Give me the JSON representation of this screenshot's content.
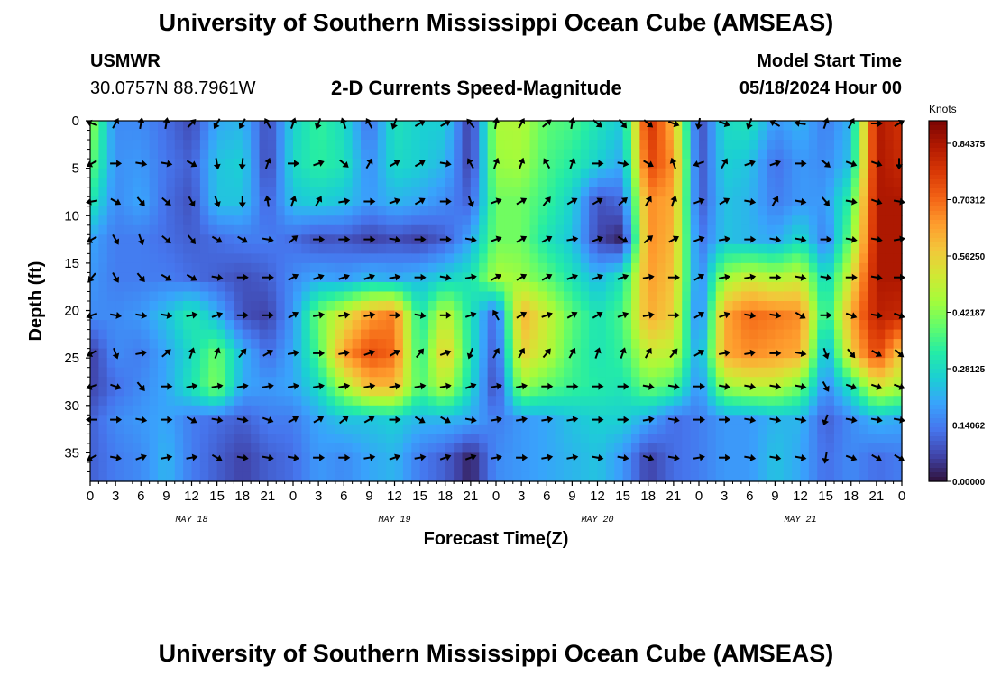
{
  "header": {
    "title": "University of Southern Mississippi Ocean Cube (AMSEAS)",
    "station": "USMWR",
    "coords": "30.0757N  88.7961W",
    "plot_title": "2-D Currents Speed-Magnitude",
    "model_label": "Model Start Time",
    "model_time": "05/18/2024 Hour 00"
  },
  "footer": {
    "title": "University of Southern Mississippi Ocean Cube (AMSEAS)"
  },
  "colors": {
    "scale": [
      "#30123b",
      "#4145ab",
      "#4675ed",
      "#39a2fc",
      "#1bcfd4",
      "#24eca6",
      "#61fc6c",
      "#a4fc3b",
      "#d1e834",
      "#f3c63a",
      "#fe9b2d",
      "#f36315",
      "#d93806",
      "#b11901",
      "#7a0403"
    ]
  },
  "chart_data": {
    "type": "heatmap",
    "title": "2-D Currents Speed-Magnitude",
    "xlabel": "Forecast Time(Z)",
    "ylabel": "Depth (ft)",
    "x_ticks": [
      "0",
      "3",
      "6",
      "9",
      "12",
      "15",
      "18",
      "21",
      "0",
      "3",
      "6",
      "9",
      "12",
      "15",
      "18",
      "21",
      "0",
      "3",
      "6",
      "9",
      "12",
      "15",
      "18",
      "21",
      "0",
      "3",
      "6",
      "9",
      "12",
      "15",
      "18",
      "21",
      "0"
    ],
    "x_hours": [
      0,
      3,
      6,
      9,
      12,
      15,
      18,
      21,
      24,
      27,
      30,
      33,
      36,
      39,
      42,
      45,
      48,
      51,
      54,
      57,
      60,
      63,
      66,
      69,
      72,
      75,
      78,
      81,
      84,
      87,
      90,
      93,
      96
    ],
    "date_labels": [
      {
        "label": "MAY 18",
        "hour": 12
      },
      {
        "label": "MAY 19",
        "hour": 36
      },
      {
        "label": "MAY 20",
        "hour": 60
      },
      {
        "label": "MAY 21",
        "hour": 84
      }
    ],
    "y_ticks": [
      "0",
      "5",
      "10",
      "15",
      "20",
      "25",
      "30",
      "35"
    ],
    "y_values": [
      0,
      5,
      10,
      15,
      20,
      25,
      30,
      35
    ],
    "xlim": [
      0,
      96
    ],
    "ylim": [
      0,
      38
    ],
    "colorbar": {
      "label": "Knots",
      "tick_labels": [
        "0.84375",
        "0.70312",
        "0.56250",
        "0.42187",
        "0.28125",
        "0.14062",
        "0.00000"
      ],
      "tick_values": [
        0.84375,
        0.70312,
        0.5625,
        0.42187,
        0.28125,
        0.14062,
        0.0
      ],
      "range": [
        0,
        0.9
      ]
    },
    "depth_levels": [
      0,
      4.5,
      8.5,
      12.5,
      16.5,
      20.5,
      24.5,
      28,
      31.5,
      35.5
    ],
    "hour_columns": [
      0,
      3,
      6,
      9,
      12,
      15,
      18,
      21,
      24,
      27,
      30,
      33,
      36,
      39,
      42,
      45,
      48,
      51,
      54,
      57,
      60,
      63,
      66,
      69,
      72,
      75,
      78,
      81,
      84,
      87,
      90,
      93,
      96
    ],
    "speed_knots": [
      [
        0.45,
        0.16,
        0.16,
        0.12,
        0.07,
        0.2,
        0.22,
        0.07,
        0.26,
        0.34,
        0.28,
        0.12,
        0.3,
        0.26,
        0.26,
        0.04,
        0.46,
        0.47,
        0.38,
        0.36,
        0.3,
        0.25,
        0.8,
        0.6,
        0.06,
        0.28,
        0.3,
        0.18,
        0.22,
        0.14,
        0.22,
        0.84,
        0.78
      ],
      [
        0.4,
        0.17,
        0.18,
        0.13,
        0.1,
        0.24,
        0.26,
        0.06,
        0.28,
        0.33,
        0.3,
        0.16,
        0.28,
        0.26,
        0.22,
        0.05,
        0.44,
        0.45,
        0.36,
        0.32,
        0.26,
        0.2,
        0.76,
        0.65,
        0.07,
        0.26,
        0.24,
        0.12,
        0.18,
        0.16,
        0.24,
        0.84,
        0.8
      ],
      [
        0.32,
        0.16,
        0.2,
        0.12,
        0.08,
        0.24,
        0.24,
        0.1,
        0.24,
        0.26,
        0.24,
        0.18,
        0.22,
        0.2,
        0.16,
        0.1,
        0.4,
        0.4,
        0.34,
        0.26,
        0.08,
        0.12,
        0.66,
        0.62,
        0.08,
        0.24,
        0.22,
        0.14,
        0.18,
        0.18,
        0.34,
        0.84,
        0.84
      ],
      [
        0.2,
        0.14,
        0.14,
        0.12,
        0.1,
        0.12,
        0.14,
        0.14,
        0.12,
        0.08,
        0.09,
        0.06,
        0.08,
        0.06,
        0.1,
        0.2,
        0.4,
        0.4,
        0.3,
        0.24,
        0.07,
        0.02,
        0.66,
        0.6,
        0.12,
        0.24,
        0.22,
        0.2,
        0.28,
        0.14,
        0.4,
        0.84,
        0.84
      ],
      [
        0.18,
        0.14,
        0.14,
        0.14,
        0.12,
        0.1,
        0.08,
        0.1,
        0.16,
        0.2,
        0.18,
        0.22,
        0.2,
        0.22,
        0.26,
        0.3,
        0.46,
        0.44,
        0.38,
        0.3,
        0.22,
        0.3,
        0.64,
        0.58,
        0.14,
        0.44,
        0.5,
        0.46,
        0.5,
        0.26,
        0.52,
        0.84,
        0.84
      ],
      [
        0.16,
        0.16,
        0.18,
        0.24,
        0.32,
        0.22,
        0.08,
        0.06,
        0.18,
        0.4,
        0.52,
        0.64,
        0.68,
        0.3,
        0.5,
        0.3,
        0.1,
        0.62,
        0.5,
        0.38,
        0.3,
        0.36,
        0.62,
        0.56,
        0.12,
        0.62,
        0.7,
        0.68,
        0.66,
        0.3,
        0.62,
        0.82,
        0.8
      ],
      [
        0.05,
        0.16,
        0.14,
        0.2,
        0.28,
        0.4,
        0.22,
        0.12,
        0.2,
        0.36,
        0.64,
        0.74,
        0.7,
        0.32,
        0.58,
        0.3,
        0.08,
        0.56,
        0.48,
        0.36,
        0.3,
        0.34,
        0.5,
        0.48,
        0.18,
        0.62,
        0.66,
        0.64,
        0.62,
        0.2,
        0.56,
        0.76,
        0.56
      ],
      [
        0.06,
        0.12,
        0.16,
        0.2,
        0.3,
        0.42,
        0.2,
        0.18,
        0.2,
        0.28,
        0.46,
        0.6,
        0.6,
        0.36,
        0.48,
        0.28,
        0.06,
        0.44,
        0.38,
        0.34,
        0.32,
        0.3,
        0.4,
        0.36,
        0.16,
        0.44,
        0.48,
        0.48,
        0.4,
        0.16,
        0.3,
        0.52,
        0.46
      ],
      [
        0.1,
        0.16,
        0.18,
        0.2,
        0.14,
        0.12,
        0.1,
        0.14,
        0.14,
        0.2,
        0.24,
        0.24,
        0.26,
        0.22,
        0.22,
        0.2,
        0.14,
        0.18,
        0.2,
        0.24,
        0.26,
        0.26,
        0.2,
        0.12,
        0.14,
        0.18,
        0.18,
        0.22,
        0.22,
        0.1,
        0.16,
        0.22,
        0.2
      ],
      [
        0.1,
        0.14,
        0.16,
        0.22,
        0.14,
        0.1,
        0.06,
        0.1,
        0.12,
        0.18,
        0.16,
        0.2,
        0.22,
        0.14,
        0.1,
        0.02,
        0.16,
        0.18,
        0.2,
        0.22,
        0.24,
        0.18,
        0.06,
        0.12,
        0.14,
        0.18,
        0.18,
        0.24,
        0.2,
        0.12,
        0.16,
        0.12,
        0.14
      ]
    ],
    "direction_deg": [
      [
        290,
        30,
        10,
        10,
        45,
        210,
        210,
        330,
        20,
        200,
        340,
        330,
        200,
        60,
        60,
        320,
        10,
        30,
        50,
        10,
        130,
        140,
        130,
        110,
        190,
        110,
        200,
        300,
        280,
        20,
        30,
        90,
        60
      ],
      [
        240,
        90,
        100,
        100,
        120,
        170,
        185,
        20,
        90,
        70,
        130,
        30,
        60,
        60,
        100,
        330,
        20,
        20,
        330,
        20,
        90,
        100,
        120,
        340,
        250,
        30,
        70,
        70,
        90,
        130,
        110,
        110,
        180
      ],
      [
        260,
        120,
        140,
        130,
        150,
        160,
        180,
        350,
        20,
        30,
        80,
        90,
        70,
        60,
        90,
        160,
        70,
        60,
        40,
        60,
        60,
        50,
        30,
        20,
        70,
        60,
        100,
        30,
        100,
        140,
        100,
        110,
        100
      ],
      [
        240,
        150,
        160,
        130,
        140,
        120,
        120,
        100,
        50,
        90,
        90,
        90,
        100,
        90,
        90,
        100,
        70,
        60,
        60,
        80,
        70,
        120,
        50,
        60,
        70,
        80,
        90,
        100,
        100,
        90,
        100,
        100,
        80
      ],
      [
        220,
        150,
        140,
        120,
        120,
        100,
        90,
        90,
        60,
        70,
        70,
        70,
        80,
        90,
        100,
        80,
        60,
        60,
        60,
        70,
        70,
        70,
        80,
        90,
        60,
        80,
        80,
        90,
        100,
        100,
        90,
        100,
        90
      ],
      [
        250,
        100,
        100,
        100,
        80,
        70,
        90,
        90,
        60,
        80,
        80,
        80,
        90,
        100,
        90,
        70,
        330,
        60,
        70,
        60,
        60,
        70,
        80,
        90,
        60,
        70,
        100,
        100,
        120,
        90,
        110,
        100,
        110
      ],
      [
        240,
        160,
        80,
        50,
        20,
        20,
        40,
        60,
        80,
        90,
        80,
        70,
        60,
        40,
        70,
        200,
        30,
        30,
        40,
        30,
        20,
        20,
        30,
        40,
        60,
        80,
        80,
        90,
        100,
        160,
        140,
        120,
        130
      ],
      [
        250,
        110,
        140,
        90,
        80,
        80,
        80,
        80,
        80,
        80,
        80,
        80,
        80,
        80,
        80,
        70,
        80,
        80,
        90,
        90,
        90,
        90,
        100,
        100,
        90,
        100,
        100,
        100,
        100,
        150,
        110,
        110,
        110
      ],
      [
        270,
        90,
        100,
        90,
        120,
        100,
        100,
        110,
        60,
        60,
        50,
        60,
        90,
        120,
        120,
        100,
        80,
        80,
        80,
        80,
        90,
        90,
        80,
        100,
        90,
        90,
        100,
        100,
        100,
        200,
        100,
        100,
        100
      ],
      [
        240,
        100,
        70,
        80,
        80,
        120,
        100,
        100,
        100,
        90,
        90,
        80,
        70,
        80,
        70,
        70,
        80,
        90,
        80,
        80,
        100,
        100,
        110,
        100,
        80,
        90,
        100,
        100,
        100,
        190,
        110,
        120,
        120
      ]
    ]
  }
}
